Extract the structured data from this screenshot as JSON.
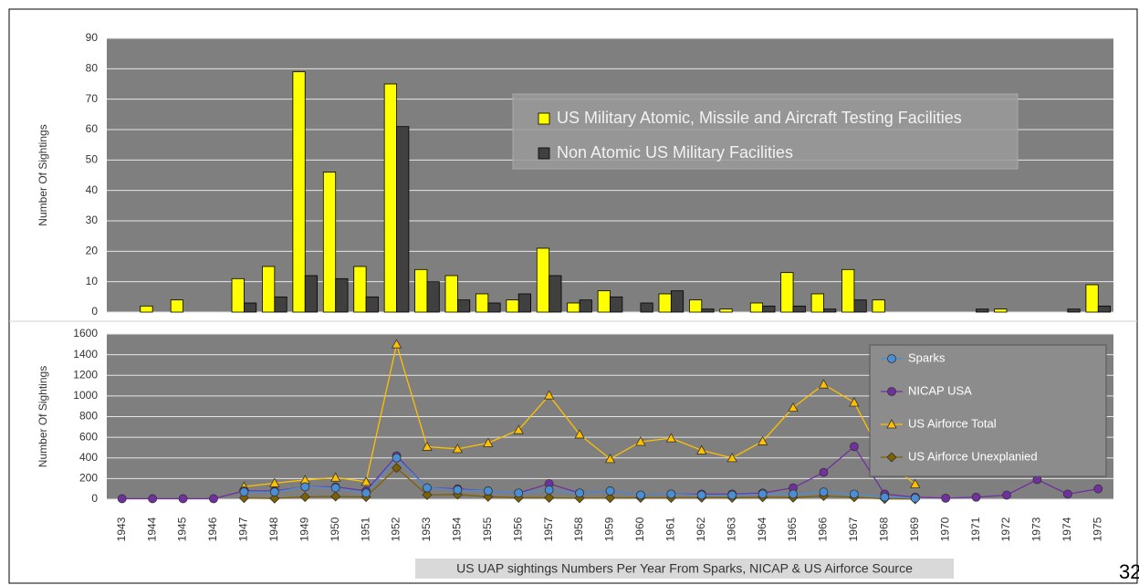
{
  "chart_data": [
    {
      "type": "bar",
      "ylabel": "Number Of Sightings",
      "ylim": [
        0,
        90
      ],
      "yticks": [
        0,
        10,
        20,
        30,
        40,
        50,
        60,
        70,
        80,
        90
      ],
      "grid": true,
      "series": [
        {
          "name": "US Military Atomic, Missile and Aircraft Testing Facilities",
          "color": "#ffff00",
          "values": [
            0,
            2,
            4,
            0,
            11,
            15,
            79,
            46,
            15,
            75,
            14,
            12,
            6,
            4,
            21,
            3,
            7,
            0,
            6,
            4,
            1,
            3,
            13,
            6,
            14,
            4,
            0,
            0,
            0,
            1,
            0,
            0,
            9
          ]
        },
        {
          "name": "Non Atomic US Military Facilities",
          "color": "#404040",
          "values": [
            0,
            0,
            0,
            0,
            3,
            5,
            12,
            11,
            5,
            61,
            10,
            4,
            3,
            6,
            12,
            4,
            5,
            3,
            7,
            1,
            0,
            2,
            2,
            1,
            4,
            0,
            0,
            0,
            1,
            0,
            0,
            1,
            2
          ]
        }
      ]
    },
    {
      "type": "line",
      "ylabel": "Number Of Sightings",
      "ylim": [
        0,
        1600
      ],
      "yticks": [
        0,
        200,
        400,
        600,
        800,
        1000,
        1200,
        1400,
        1600
      ],
      "grid": true,
      "categories": [
        "1943",
        "1944",
        "1945",
        "1946",
        "1947",
        "1948",
        "1949",
        "1950",
        "1951",
        "1952",
        "1953",
        "1954",
        "1955",
        "1956",
        "1957",
        "1958",
        "1959",
        "1960",
        "1961",
        "1962",
        "1963",
        "1964",
        "1965",
        "1966",
        "1967",
        "1968",
        "1969",
        "1970",
        "1971",
        "1972",
        "1973",
        "1974",
        "1975"
      ],
      "series": [
        {
          "name": "Sparks",
          "color": "#4a8fd6",
          "marker": "circle",
          "values": [
            null,
            null,
            null,
            null,
            70,
            70,
            120,
            110,
            60,
            400,
            110,
            90,
            80,
            60,
            90,
            60,
            80,
            40,
            50,
            40,
            40,
            50,
            50,
            70,
            50,
            20,
            10,
            null,
            null,
            null,
            null,
            null,
            null
          ]
        },
        {
          "name": "NICAP USA",
          "color": "#7030a0",
          "marker": "circle",
          "values": [
            5,
            5,
            5,
            5,
            80,
            80,
            120,
            120,
            80,
            420,
            110,
            100,
            80,
            60,
            150,
            60,
            80,
            40,
            50,
            50,
            50,
            60,
            110,
            260,
            510,
            50,
            20,
            10,
            20,
            40,
            190,
            50,
            100
          ]
        },
        {
          "name": "US Airforce Total",
          "color": "#ffc000",
          "marker": "triangle",
          "values": [
            null,
            null,
            null,
            null,
            122,
            156,
            186,
            210,
            169,
            1501,
            509,
            487,
            545,
            670,
            1006,
            627,
            390,
            557,
            591,
            474,
            399,
            562,
            887,
            1112,
            937,
            375,
            146,
            null,
            null,
            null,
            null,
            null,
            null
          ]
        },
        {
          "name": "US Airforce Unexplanied",
          "color": "#7f6000",
          "marker": "diamond",
          "values": [
            null,
            null,
            null,
            null,
            12,
            7,
            22,
            27,
            22,
            303,
            42,
            46,
            24,
            14,
            14,
            10,
            12,
            14,
            13,
            15,
            14,
            19,
            16,
            32,
            19,
            3,
            1,
            null,
            null,
            null,
            null,
            null,
            null
          ]
        }
      ]
    }
  ],
  "caption": "US UAP sightings Numbers Per Year From Sparks, NICAP & US Airforce Source",
  "page_number": "32"
}
